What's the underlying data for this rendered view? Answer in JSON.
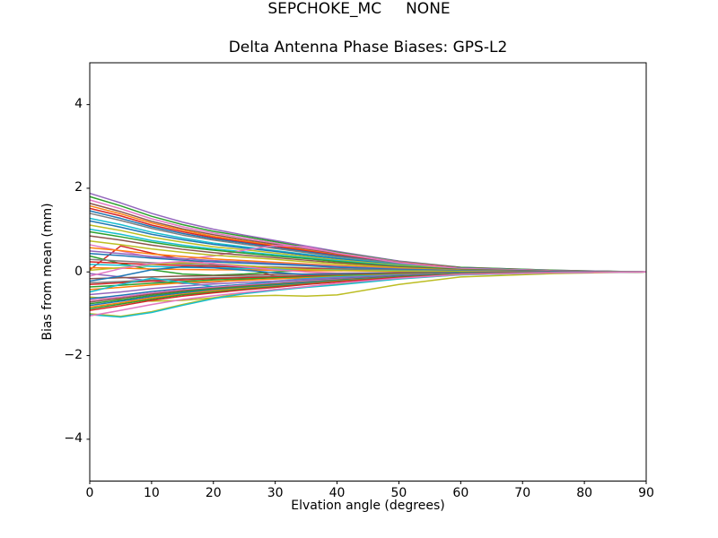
{
  "figure": {
    "suptitle": "SEPCHOKE_MC     NONE",
    "background": "#ffffff"
  },
  "chart_data": {
    "type": "line",
    "title": "Delta Antenna Phase Biases: GPS-L2",
    "xlabel": "Elvation angle (degrees)",
    "ylabel": "Bias from mean (mm)",
    "xlim": [
      0,
      90
    ],
    "ylim": [
      -5,
      5
    ],
    "xticks": [
      0,
      10,
      20,
      30,
      40,
      50,
      60,
      70,
      80,
      90
    ],
    "yticks": [
      -4,
      -2,
      0,
      2,
      4
    ],
    "grid": false,
    "legend": false,
    "axis_color": "#000000",
    "line_width": 1.5,
    "palette": [
      "#1f77b4",
      "#ff7f0e",
      "#2ca02c",
      "#d62728",
      "#9467bd",
      "#8c564b",
      "#e377c2",
      "#7f7f7f",
      "#bcbd22",
      "#17becf"
    ],
    "x": [
      0,
      5,
      10,
      15,
      20,
      25,
      30,
      35,
      40,
      50,
      60,
      75,
      90
    ],
    "series": [
      {
        "color": "#9467bd",
        "values": [
          1.88,
          1.65,
          1.4,
          1.19,
          1.02,
          0.88,
          0.75,
          0.62,
          0.49,
          0.26,
          0.11,
          0.04,
          0
        ]
      },
      {
        "color": "#2ca02c",
        "values": [
          1.8,
          1.58,
          1.33,
          1.13,
          0.97,
          0.85,
          0.72,
          0.59,
          0.47,
          0.25,
          0.11,
          0.04,
          0
        ]
      },
      {
        "color": "#e377c2",
        "values": [
          1.72,
          1.51,
          1.27,
          1.08,
          0.93,
          0.81,
          0.69,
          0.57,
          0.45,
          0.24,
          0.1,
          0.03,
          0
        ]
      },
      {
        "color": "#8c564b",
        "values": [
          1.64,
          1.44,
          1.21,
          1.03,
          0.89,
          0.77,
          0.66,
          0.54,
          0.43,
          0.23,
          0.1,
          0.03,
          0
        ]
      },
      {
        "color": "#ff7f0e",
        "values": [
          1.58,
          1.39,
          1.17,
          1.0,
          0.85,
          0.74,
          0.63,
          0.52,
          0.41,
          0.22,
          0.09,
          0.03,
          0
        ]
      },
      {
        "color": "#d62728",
        "values": [
          1.52,
          1.34,
          1.12,
          0.96,
          0.82,
          0.71,
          0.61,
          0.5,
          0.4,
          0.21,
          0.09,
          0.03,
          0
        ]
      },
      {
        "color": "#1f77b4",
        "values": [
          1.46,
          1.28,
          1.08,
          0.92,
          0.79,
          0.69,
          0.58,
          0.48,
          0.38,
          0.2,
          0.09,
          0.03,
          0
        ]
      },
      {
        "color": "#7f7f7f",
        "values": [
          1.4,
          1.23,
          1.04,
          0.88,
          0.76,
          0.66,
          0.56,
          0.46,
          0.36,
          0.2,
          0.08,
          0.03,
          0
        ]
      },
      {
        "color": "#17becf",
        "values": [
          1.28,
          1.13,
          0.95,
          0.81,
          0.69,
          0.6,
          0.51,
          0.42,
          0.33,
          0.18,
          0.08,
          0.03,
          0
        ]
      },
      {
        "color": "#1f77b4",
        "values": [
          1.22,
          1.07,
          0.9,
          0.77,
          0.66,
          0.57,
          0.49,
          0.4,
          0.32,
          0.17,
          0.07,
          0.02,
          0
        ]
      },
      {
        "color": "#bcbd22",
        "values": [
          1.12,
          0.99,
          0.83,
          0.71,
          0.6,
          0.53,
          0.45,
          0.37,
          0.29,
          0.16,
          0.07,
          0.02,
          0
        ]
      },
      {
        "color": "#17becf",
        "values": [
          1.02,
          0.9,
          0.75,
          0.64,
          0.55,
          0.48,
          0.41,
          0.34,
          0.27,
          0.14,
          0.06,
          0.02,
          0
        ]
      },
      {
        "color": "#d62728",
        "values": [
          0.05,
          0.62,
          0.45,
          0.3,
          0.18,
          0.1,
          -0.1,
          -0.18,
          -0.15,
          -0.08,
          -0.03,
          -0.01,
          0
        ]
      },
      {
        "color": "#e377c2",
        "values": [
          0.65,
          0.5,
          0.35,
          0.3,
          0.38,
          0.52,
          0.63,
          0.6,
          0.45,
          0.22,
          0.08,
          0.03,
          0
        ]
      },
      {
        "color": "#2ca02c",
        "values": [
          0.96,
          0.84,
          0.71,
          0.6,
          0.52,
          0.45,
          0.38,
          0.32,
          0.25,
          0.13,
          0.06,
          0.02,
          0
        ]
      },
      {
        "color": "#8c564b",
        "values": [
          0.86,
          0.76,
          0.64,
          0.54,
          0.46,
          0.4,
          0.34,
          0.28,
          0.22,
          0.12,
          0.05,
          0.02,
          0
        ]
      },
      {
        "color": "#bcbd22",
        "values": [
          0.74,
          0.65,
          0.55,
          0.47,
          0.4,
          0.35,
          0.3,
          0.24,
          0.19,
          0.1,
          0.04,
          0.01,
          0
        ]
      },
      {
        "color": "#ff7f0e",
        "values": [
          0.58,
          0.51,
          0.43,
          0.37,
          0.31,
          0.27,
          0.23,
          0.19,
          0.15,
          0.08,
          0.03,
          0.01,
          0
        ]
      },
      {
        "color": "#9467bd",
        "values": [
          0.5,
          0.44,
          0.37,
          0.32,
          0.27,
          0.24,
          0.2,
          0.17,
          0.13,
          0.07,
          0.03,
          0.01,
          0
        ]
      },
      {
        "color": "#1f77b4",
        "values": [
          0.44,
          0.39,
          0.33,
          0.28,
          0.24,
          0.21,
          0.18,
          0.15,
          0.11,
          0.06,
          0.03,
          0.01,
          0
        ]
      },
      {
        "color": "#2ca02c",
        "values": [
          0.38,
          0.2,
          0.05,
          -0.05,
          -0.08,
          -0.05,
          0.0,
          0.04,
          0.05,
          0.03,
          0.01,
          0,
          0
        ]
      },
      {
        "color": "#7f7f7f",
        "values": [
          0.3,
          0.26,
          0.22,
          0.19,
          0.16,
          0.14,
          0.12,
          0.1,
          0.08,
          0.04,
          0.02,
          0.01,
          0
        ]
      },
      {
        "color": "#d62728",
        "values": [
          0.24,
          0.21,
          0.18,
          0.15,
          0.13,
          0.11,
          0.1,
          0.08,
          0.06,
          0.03,
          0.01,
          0,
          0
        ]
      },
      {
        "color": "#17becf",
        "values": [
          0.18,
          0.16,
          0.13,
          0.11,
          0.1,
          0.08,
          0.07,
          0.06,
          0.05,
          0.03,
          0.01,
          0,
          0
        ]
      },
      {
        "color": "#ff7f0e",
        "values": [
          0.1,
          0.09,
          0.07,
          0.06,
          0.05,
          0.05,
          0.04,
          0.03,
          0.03,
          0.01,
          0.01,
          0,
          0
        ]
      },
      {
        "color": "#bcbd22",
        "values": [
          0.04,
          0.1,
          0.18,
          0.22,
          0.2,
          0.15,
          0.1,
          0.06,
          0.04,
          0.02,
          0.01,
          0,
          0
        ]
      },
      {
        "color": "#9467bd",
        "values": [
          -0.04,
          -0.12,
          -0.22,
          -0.28,
          -0.25,
          -0.18,
          -0.12,
          -0.08,
          -0.05,
          -0.03,
          -0.01,
          0,
          0
        ]
      },
      {
        "color": "#e377c2",
        "values": [
          -0.1,
          0.08,
          0.2,
          0.25,
          0.2,
          0.12,
          0.05,
          0.0,
          -0.03,
          -0.02,
          -0.01,
          0,
          0
        ]
      },
      {
        "color": "#8c564b",
        "values": [
          -0.16,
          -0.14,
          -0.12,
          -0.1,
          -0.09,
          -0.08,
          -0.06,
          -0.05,
          -0.04,
          -0.02,
          -0.01,
          0,
          0
        ]
      },
      {
        "color": "#1f77b4",
        "values": [
          -0.22,
          -0.1,
          0.05,
          0.12,
          0.1,
          0.04,
          -0.02,
          -0.06,
          -0.05,
          -0.03,
          -0.01,
          0,
          0
        ]
      },
      {
        "color": "#7f7f7f",
        "values": [
          -0.26,
          -0.23,
          -0.19,
          -0.16,
          -0.14,
          -0.12,
          -0.1,
          -0.09,
          -0.07,
          -0.04,
          -0.02,
          -0.01,
          0
        ]
      },
      {
        "color": "#d62728",
        "values": [
          -0.3,
          -0.26,
          -0.22,
          -0.19,
          -0.16,
          -0.14,
          -0.12,
          -0.1,
          -0.08,
          -0.04,
          -0.02,
          -0.01,
          0
        ]
      },
      {
        "color": "#2ca02c",
        "values": [
          -0.36,
          -0.32,
          -0.27,
          -0.23,
          -0.19,
          -0.17,
          -0.14,
          -0.12,
          -0.09,
          -0.05,
          -0.02,
          -0.01,
          0
        ]
      },
      {
        "color": "#ff7f0e",
        "values": [
          -0.42,
          -0.37,
          -0.31,
          -0.26,
          -0.23,
          -0.2,
          -0.17,
          -0.14,
          -0.11,
          -0.06,
          -0.03,
          -0.01,
          0
        ]
      },
      {
        "color": "#17becf",
        "values": [
          -0.48,
          -0.3,
          -0.15,
          -0.25,
          -0.35,
          -0.3,
          -0.22,
          -0.16,
          -0.12,
          -0.07,
          -0.03,
          -0.01,
          0
        ]
      },
      {
        "color": "#9467bd",
        "values": [
          -0.54,
          -0.48,
          -0.4,
          -0.34,
          -0.29,
          -0.25,
          -0.22,
          -0.18,
          -0.14,
          -0.08,
          -0.03,
          -0.01,
          0
        ]
      },
      {
        "color": "#bcbd22",
        "values": [
          -0.6,
          -0.66,
          -0.7,
          -0.68,
          -0.62,
          -0.58,
          -0.56,
          -0.58,
          -0.55,
          -0.3,
          -0.12,
          -0.04,
          0
        ]
      },
      {
        "color": "#1f77b4",
        "values": [
          -0.64,
          -0.56,
          -0.47,
          -0.4,
          -0.35,
          -0.3,
          -0.26,
          -0.21,
          -0.17,
          -0.09,
          -0.04,
          -0.01,
          0
        ]
      },
      {
        "color": "#e377c2",
        "values": [
          -0.68,
          -0.6,
          -0.5,
          -0.43,
          -0.37,
          -0.32,
          -0.27,
          -0.22,
          -0.18,
          -0.1,
          -0.04,
          -0.01,
          0
        ]
      },
      {
        "color": "#8c564b",
        "values": [
          -0.72,
          -0.63,
          -0.53,
          -0.45,
          -0.39,
          -0.34,
          -0.29,
          -0.24,
          -0.19,
          -0.1,
          -0.04,
          -0.01,
          0
        ]
      },
      {
        "color": "#2ca02c",
        "values": [
          -0.76,
          -0.67,
          -0.56,
          -0.48,
          -0.41,
          -0.36,
          -0.3,
          -0.25,
          -0.2,
          -0.11,
          -0.05,
          -0.02,
          0
        ]
      },
      {
        "color": "#1f77b4",
        "values": [
          -0.8,
          -0.7,
          -0.59,
          -0.5,
          -0.43,
          -0.38,
          -0.32,
          -0.26,
          -0.21,
          -0.11,
          -0.05,
          -0.02,
          0
        ]
      },
      {
        "color": "#ff7f0e",
        "values": [
          -0.84,
          -0.74,
          -0.62,
          -0.53,
          -0.45,
          -0.39,
          -0.34,
          -0.28,
          -0.22,
          -0.12,
          -0.05,
          -0.02,
          0
        ]
      },
      {
        "color": "#2ca02c",
        "values": [
          -0.88,
          -0.77,
          -0.65,
          -0.55,
          -0.48,
          -0.41,
          -0.35,
          -0.29,
          -0.23,
          -0.12,
          -0.05,
          -0.02,
          0
        ]
      },
      {
        "color": "#d62728",
        "values": [
          -0.92,
          -0.81,
          -0.68,
          -0.58,
          -0.5,
          -0.43,
          -0.37,
          -0.3,
          -0.24,
          -0.13,
          -0.06,
          -0.02,
          0
        ]
      },
      {
        "color": "#bcbd22",
        "values": [
          -1.0,
          -1.06,
          -0.95,
          -0.78,
          -0.62,
          -0.5,
          -0.42,
          -0.36,
          -0.3,
          -0.16,
          -0.07,
          -0.02,
          0
        ]
      },
      {
        "color": "#17becf",
        "values": [
          -1.02,
          -1.08,
          -0.97,
          -0.8,
          -0.64,
          -0.52,
          -0.44,
          -0.37,
          -0.31,
          -0.17,
          -0.07,
          -0.02,
          0
        ]
      },
      {
        "color": "#e377c2",
        "values": [
          -1.05,
          -0.92,
          -0.78,
          -0.66,
          -0.57,
          -0.49,
          -0.42,
          -0.35,
          -0.27,
          -0.15,
          -0.06,
          -0.02,
          0
        ]
      }
    ]
  }
}
